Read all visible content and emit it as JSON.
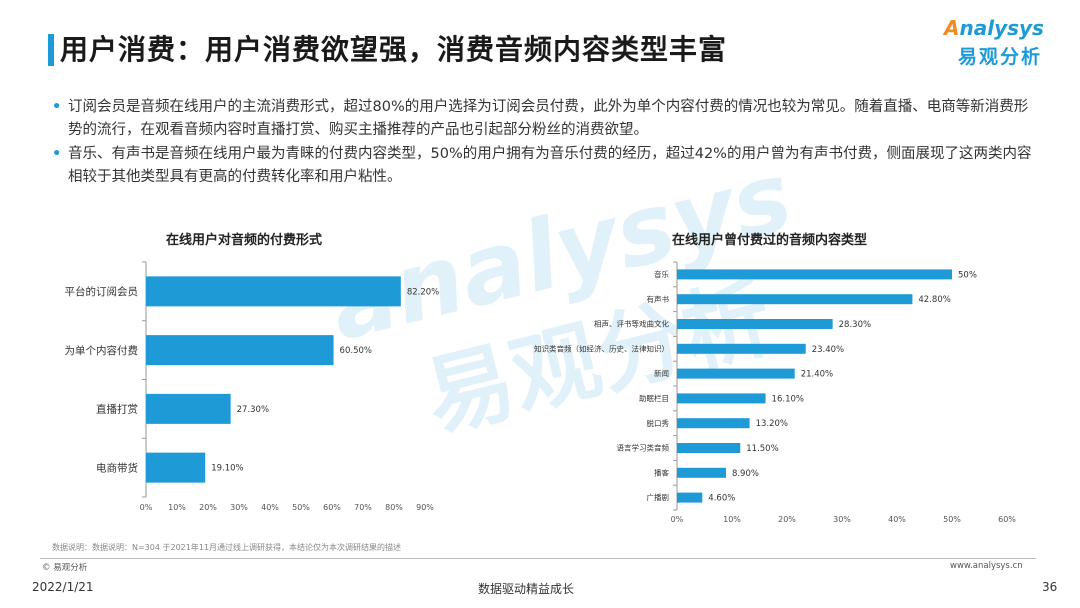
{
  "header": {
    "title": "用户消费：用户消费欲望强，消费音频内容类型丰富",
    "logo_en": "nalysys",
    "logo_en_initial": "A",
    "logo_cn": "易观分析",
    "accent_color": "#1e9bd7",
    "logo_accent_color": "#f08a24"
  },
  "bullets": [
    "订阅会员是音频在线用户的主流消费形式，超过80%的用户选择为订阅会员付费，此外为单个内容付费的情况也较为常见。随着直播、电商等新消费形势的流行，在观看音频内容时直播打赏、购买主播推荐的产品也引起部分粉丝的消费欲望。",
    "音乐、有声书是音频在线用户最为青睐的付费内容类型，50%的用户拥有为音乐付费的经历，超过42%的用户曾为有声书付费，侧面展现了这两类内容相较于其他类型具有更高的付费转化率和用户粘性。"
  ],
  "watermark": {
    "en": "analysys",
    "cn": "易观分析"
  },
  "chart_data": [
    {
      "type": "bar",
      "orientation": "horizontal",
      "title": "在线用户对音频的付费形式",
      "categories": [
        "平台的订阅会员",
        "为单个内容付费",
        "直播打赏",
        "电商带货"
      ],
      "values": [
        82.2,
        60.5,
        27.3,
        19.1
      ],
      "value_labels": [
        "82.20%",
        "60.50%",
        "27.30%",
        "19.10%"
      ],
      "xlim": [
        0,
        90
      ],
      "x_ticks": [
        "0%",
        "10%",
        "20%",
        "30%",
        "40%",
        "50%",
        "60%",
        "70%",
        "80%",
        "90%"
      ],
      "bar_color": "#1e9bd7",
      "grid": false
    },
    {
      "type": "bar",
      "orientation": "horizontal",
      "title": "在线用户曾付费过的音频内容类型",
      "categories": [
        "音乐",
        "有声书",
        "相声、评书等戏曲文化",
        "知识类音频（如经济、历史、法律知识）",
        "新闻",
        "助眠栏目",
        "脱口秀",
        "语言学习类音频",
        "播客",
        "广播剧"
      ],
      "values": [
        50,
        42.8,
        28.3,
        23.4,
        21.4,
        16.1,
        13.2,
        11.5,
        8.9,
        4.6
      ],
      "value_labels": [
        "50%",
        "42.80%",
        "28.30%",
        "23.40%",
        "21.40%",
        "16.10%",
        "13.20%",
        "11.50%",
        "8.90%",
        "4.60%"
      ],
      "xlim": [
        0,
        60
      ],
      "x_ticks": [
        "0%",
        "10%",
        "20%",
        "30%",
        "40%",
        "50%",
        "60%"
      ],
      "bar_color": "#1e9bd7",
      "grid": false
    }
  ],
  "footer": {
    "note": "数据说明：数据说明：N=304 于2021年11月通过线上调研获得，本结论仅为本次调研结果的描述",
    "copyright": "© 易观分析",
    "website": "www.analysys.cn",
    "date": "2022/1/21",
    "slogan": "数据驱动精益成长",
    "page": "36"
  }
}
